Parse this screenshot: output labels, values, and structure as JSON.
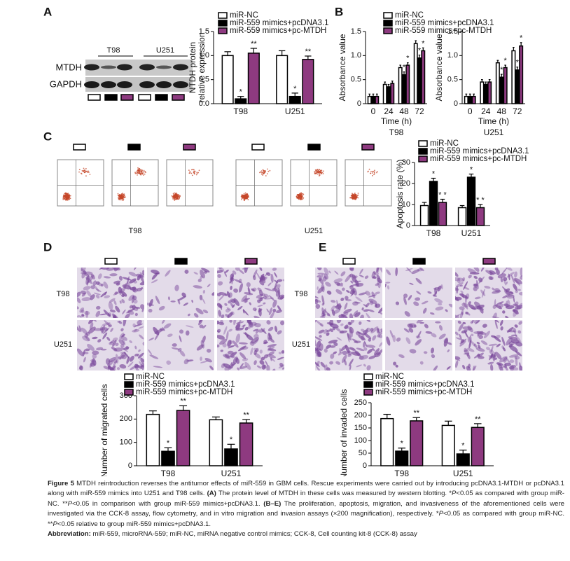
{
  "panel_a": {
    "label": "A",
    "lanes": [
      "T98",
      "U251"
    ],
    "bands": [
      "MTDH",
      "GAPDH"
    ]
  },
  "panel_b": {
    "label": "B"
  },
  "panel_c": {
    "label": "C",
    "groups": [
      "T98",
      "U251"
    ]
  },
  "panel_d": {
    "label": "D",
    "rows": [
      "T98",
      "U251"
    ]
  },
  "panel_e": {
    "label": "E",
    "rows": [
      "T98",
      "U251"
    ]
  },
  "chart_data": [
    {
      "type": "bar",
      "ylabel": [
        "NTDH protein",
        "relative expression"
      ],
      "categories": [
        "T98",
        "U251"
      ],
      "ylim": [
        0,
        1.5
      ],
      "yticks": [
        {
          "value": 0,
          "label": "0.0"
        },
        0.5,
        {
          "value": 1,
          "label": "1.0"
        },
        1.5
      ],
      "legend": true,
      "series": [
        {
          "name": "miR-NC",
          "color": "#ffffff",
          "values": [
            1.0,
            1.0
          ],
          "errors": [
            0.08,
            0.1
          ],
          "markers": [
            null,
            null
          ]
        },
        {
          "name": "miR-559 mimics+pcDNA3.1",
          "color": "#000000",
          "values": [
            0.1,
            0.15
          ],
          "errors": [
            0.05,
            0.07
          ],
          "markers": [
            "*",
            "*"
          ]
        },
        {
          "name": "miR-559 mimics+pc-MTDH",
          "color": "#8e3a80",
          "values": [
            1.05,
            0.92
          ],
          "errors": [
            0.1,
            0.07
          ],
          "markers": [
            "**",
            "**"
          ]
        }
      ]
    },
    {
      "type": "bar",
      "ylabel": [
        "Absorbance value"
      ],
      "xlabel": "Time (h)",
      "subtitle": "T98",
      "categories": [
        "0",
        "24",
        "48",
        "72"
      ],
      "ylim": [
        0,
        1.5
      ],
      "yticks": [
        0,
        0.5,
        {
          "value": 1,
          "label": "1.0"
        },
        1.5
      ],
      "legend": true,
      "series": [
        {
          "name": "miR-NC",
          "color": "#ffffff",
          "values": [
            0.15,
            0.4,
            0.75,
            1.25
          ],
          "errors": [
            0.05,
            0.05,
            0.05,
            0.06
          ],
          "markers": [
            null,
            null,
            null,
            null
          ]
        },
        {
          "name": "miR-559 mimics+pcDNA3.1",
          "color": "#000000",
          "values": [
            0.15,
            0.35,
            0.6,
            0.95
          ],
          "errors": [
            0.05,
            0.05,
            0.06,
            0.06
          ],
          "markers": [
            null,
            null,
            "*",
            "*"
          ]
        },
        {
          "name": "miR-559 mimics+pc-MTDH",
          "color": "#8e3a80",
          "values": [
            0.15,
            0.42,
            0.8,
            1.1
          ],
          "errors": [
            0.05,
            0.05,
            0.05,
            0.06
          ],
          "markers": [
            null,
            null,
            "*",
            "*"
          ]
        }
      ]
    },
    {
      "type": "bar",
      "ylabel": [
        "Absorbance value"
      ],
      "xlabel": "Time (h)",
      "subtitle": "U251",
      "categories": [
        "0",
        "24",
        "48",
        "72"
      ],
      "ylim": [
        0,
        1.5
      ],
      "yticks": [
        0,
        0.5,
        {
          "value": 1,
          "label": "1.0"
        },
        1.5
      ],
      "legend": false,
      "series": [
        {
          "color": "#ffffff",
          "values": [
            0.15,
            0.45,
            0.85,
            1.1
          ],
          "errors": [
            0.05,
            0.05,
            0.05,
            0.07
          ],
          "markers": [
            null,
            null,
            null,
            null
          ]
        },
        {
          "color": "#000000",
          "values": [
            0.15,
            0.4,
            0.55,
            0.7
          ],
          "errors": [
            0.05,
            0.05,
            0.06,
            0.06
          ],
          "markers": [
            null,
            null,
            "*",
            "*"
          ]
        },
        {
          "color": "#8e3a80",
          "values": [
            0.15,
            0.45,
            0.75,
            1.2
          ],
          "errors": [
            0.05,
            0.05,
            0.05,
            0.07
          ],
          "markers": [
            null,
            null,
            "*",
            "*"
          ]
        }
      ]
    },
    {
      "type": "bar",
      "ylabel": [
        "Apoptosis rate (%)"
      ],
      "categories": [
        "T98",
        "U251"
      ],
      "ylim": [
        0,
        30
      ],
      "yticks": [
        0,
        10,
        20,
        30
      ],
      "legend": true,
      "series": [
        {
          "name": "miR-NC",
          "color": "#ffffff",
          "values": [
            9.5,
            8.5
          ],
          "errors": [
            1.5,
            1
          ],
          "markers": [
            null,
            null
          ]
        },
        {
          "name": "miR-559 mimics+pcDNA3.1",
          "color": "#000000",
          "values": [
            21,
            23
          ],
          "errors": [
            1.5,
            1.5
          ],
          "markers": [
            "*",
            "*"
          ]
        },
        {
          "name": "miR-559 mimics+pc-MTDH",
          "color": "#8e3a80",
          "values": [
            11,
            8.5
          ],
          "errors": [
            1.5,
            1.5
          ],
          "markers": [
            "* *",
            "* *"
          ]
        }
      ]
    },
    {
      "type": "bar",
      "ylabel": [
        "Number of migrated cells"
      ],
      "categories": [
        "T98",
        "U251"
      ],
      "ylim": [
        0,
        300
      ],
      "yticks": [
        0,
        100,
        200,
        300
      ],
      "legend": true,
      "series": [
        {
          "name": "miR-NC",
          "color": "#ffffff",
          "values": [
            220,
            197
          ],
          "errors": [
            15,
            12
          ],
          "markers": [
            null,
            null
          ]
        },
        {
          "name": "miR-559 mimics+pcDNA3.1",
          "color": "#000000",
          "values": [
            62,
            72
          ],
          "errors": [
            15,
            20
          ],
          "markers": [
            "*",
            "*"
          ]
        },
        {
          "name": "miR-559 mimics+pc-MTDH",
          "color": "#8e3a80",
          "values": [
            237,
            183
          ],
          "errors": [
            20,
            15
          ],
          "markers": [
            "**",
            "**"
          ]
        }
      ]
    },
    {
      "type": "bar",
      "ylabel": [
        "Number of invaded cells"
      ],
      "categories": [
        "T98",
        "U251"
      ],
      "ylim": [
        0,
        250
      ],
      "yticks": [
        0,
        50,
        100,
        150,
        200,
        250
      ],
      "legend": true,
      "series": [
        {
          "name": "miR-NC",
          "color": "#ffffff",
          "values": [
            187,
            160
          ],
          "errors": [
            17,
            17
          ],
          "markers": [
            null,
            null
          ]
        },
        {
          "name": "miR-559 mimics+pcDNA3.1",
          "color": "#000000",
          "values": [
            58,
            47
          ],
          "errors": [
            12,
            15
          ],
          "markers": [
            "*",
            "*"
          ]
        },
        {
          "name": "miR-559 mimics+pc-MTDH",
          "color": "#8e3a80",
          "values": [
            178,
            152
          ],
          "errors": [
            13,
            15
          ],
          "markers": [
            "**",
            "**"
          ]
        }
      ]
    }
  ],
  "caption": {
    "paragraphs": [
      {
        "runs": [
          {
            "text": "Figure 5",
            "style": "bold"
          },
          {
            "text": " MTDH reintroduction reverses the antitumor effects of miR-559 in GBM cells. Rescue experiments were carried out by introducing pcDNA3.1-MTDH or pcDNA3.1 along with miR-559 mimics into U251 and T98 cells. ",
            "style": "normal"
          },
          {
            "text": "(A)",
            "style": "bold"
          },
          {
            "text": " The protein level of MTDH in these cells was measured by western blotting. *",
            "style": "normal"
          },
          {
            "text": "P",
            "style": "italic"
          },
          {
            "text": "<0.05 as compared with group miR-NC. **",
            "style": "normal"
          },
          {
            "text": "P",
            "style": "italic"
          },
          {
            "text": "<0.05 in comparison with group miR-559 mimics+pcDNA3.1. ",
            "style": "normal"
          },
          {
            "text": "(B–E)",
            "style": "bold"
          },
          {
            "text": " The proliferation, apoptosis, migration, and invasiveness of the aforementioned cells were investigated via the CCK-8 assay, flow cytometry, and in vitro migration and invasion assays (×200 magnification), respectively. *",
            "style": "normal"
          },
          {
            "text": "P",
            "style": "italic"
          },
          {
            "text": "<0.05 as compared with group miR-NC. **",
            "style": "normal"
          },
          {
            "text": "P",
            "style": "italic"
          },
          {
            "text": "<0.05 relative to group miR-559 mimics+pcDNA3.1.",
            "style": "normal"
          }
        ]
      },
      {
        "runs": [
          {
            "text": "Abbreviation:",
            "style": "bold"
          },
          {
            "text": " miR-559, microRNA-559; miR-NC, miRNA negative control mimics; CCK-8, Cell counting kit-8 (CCK-8) assay",
            "style": "normal"
          }
        ]
      }
    ]
  }
}
